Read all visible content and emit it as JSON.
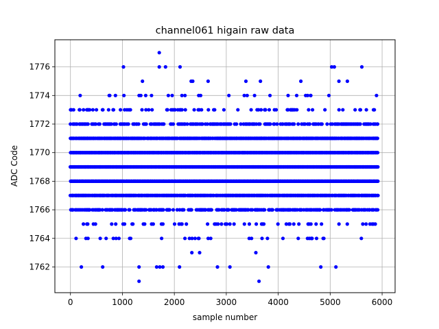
{
  "chart_data": {
    "type": "scatter",
    "title": "channel061 higain raw data",
    "xlabel": "sample number",
    "ylabel": "ADC Code",
    "xlim": [
      -300,
      6250
    ],
    "ylim": [
      1760.2,
      1777.9
    ],
    "xticks": [
      0,
      1000,
      2000,
      3000,
      4000,
      5000,
      6000
    ],
    "yticks": [
      1762,
      1764,
      1766,
      1768,
      1770,
      1772,
      1774,
      1776
    ],
    "grid": true,
    "marker_color": "#0000ff",
    "x_range": [
      0,
      5920
    ],
    "band_density": {
      "1761": 0.0003,
      "1762": 0.003,
      "1763": 0.01,
      "1764": 0.06,
      "1765": 0.12,
      "1766": 0.45,
      "1767": 0.9,
      "1768": 1.0,
      "1769": 1.0,
      "1770": 1.0,
      "1771": 0.9,
      "1772": 0.45,
      "1773": 0.15,
      "1774": 0.06,
      "1775": 0.012,
      "1776": 0.002,
      "1777": 0.0002
    },
    "sparse_points": [
      [
        1320,
        1761
      ],
      [
        3630,
        1761
      ],
      [
        210,
        1762
      ],
      [
        620,
        1762
      ],
      [
        1320,
        1762
      ],
      [
        1660,
        1762
      ],
      [
        1720,
        1762
      ],
      [
        1780,
        1762
      ],
      [
        2100,
        1762
      ],
      [
        2830,
        1762
      ],
      [
        3070,
        1762
      ],
      [
        3810,
        1762
      ],
      [
        4820,
        1762
      ],
      [
        5110,
        1762
      ],
      [
        1710,
        1777
      ],
      [
        1020,
        1776
      ],
      [
        1710,
        1776
      ],
      [
        1830,
        1776
      ],
      [
        2110,
        1776
      ],
      [
        5030,
        1776
      ],
      [
        5080,
        1776
      ],
      [
        5610,
        1776
      ]
    ]
  }
}
